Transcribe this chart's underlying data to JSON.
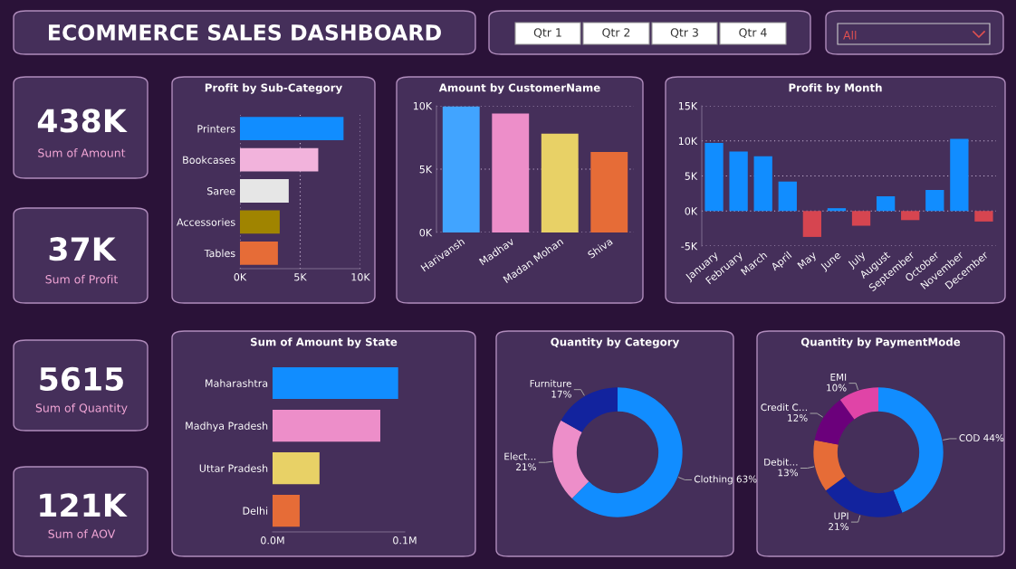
{
  "chart_data": [
    {
      "type": "other",
      "title": "ECOMMERCE SALES DASHBOARD",
      "annotations": [
        "Qtr 1",
        "Qtr 2",
        "Qtr 3",
        "Qtr 4",
        "All",
        "438K",
        "Sum of Amount",
        "37K",
        "Sum of Profit",
        "5615",
        "Sum of Quantity",
        "121K",
        "Sum of AOV"
      ]
    },
    {
      "type": "bar",
      "orientation": "horizontal",
      "title": "Profit by Sub-Category",
      "categories": [
        "Printers",
        "Bookcases",
        "Saree",
        "Accessories",
        "Tables"
      ],
      "values": [
        8600,
        6500,
        4050,
        3300,
        3150
      ],
      "colors": [
        "#118dff",
        "#f2b3dc",
        "#e6e6e6",
        "#a08400",
        "#e66c37"
      ],
      "xlim": [
        0,
        10000
      ],
      "xticks": [
        {
          "value": 0,
          "label": "0K"
        },
        {
          "value": 5000,
          "label": "5K"
        },
        {
          "value": 10000,
          "label": "10K"
        }
      ],
      "grid": "x"
    },
    {
      "type": "bar",
      "title": "Amount by CustomerName",
      "categories": [
        "Harivansh",
        "Madhav",
        "Madan Mohan",
        "Shiva"
      ],
      "values": [
        9950,
        9400,
        7800,
        6350
      ],
      "colors": [
        "#41a4ff",
        "#ed8ec9",
        "#e8d166",
        "#e66c37"
      ],
      "ylim": [
        0,
        10000
      ],
      "yticks": [
        {
          "value": 0,
          "label": "0K"
        },
        {
          "value": 5000,
          "label": "5K"
        },
        {
          "value": 10000,
          "label": "10K"
        }
      ],
      "grid": "y"
    },
    {
      "type": "bar",
      "title": "Profit by Month",
      "categories": [
        "January",
        "February",
        "March",
        "April",
        "May",
        "June",
        "July",
        "August",
        "September",
        "October",
        "November",
        "December"
      ],
      "values": [
        9700,
        8500,
        7800,
        4200,
        -3700,
        400,
        -2100,
        2100,
        -1300,
        3000,
        10300,
        -1500
      ],
      "colors": [
        "#118dff",
        "#118dff",
        "#118dff",
        "#118dff",
        "#d64550",
        "#118dff",
        "#d64550",
        "#118dff",
        "#d64550",
        "#118dff",
        "#118dff",
        "#d64550"
      ],
      "ylim": [
        -5000,
        15000
      ],
      "yticks": [
        {
          "value": -5000,
          "label": "-5K"
        },
        {
          "value": 0,
          "label": "0K"
        },
        {
          "value": 5000,
          "label": "5K"
        },
        {
          "value": 10000,
          "label": "10K"
        },
        {
          "value": 15000,
          "label": "15K"
        }
      ],
      "grid": "y"
    },
    {
      "type": "bar",
      "orientation": "horizontal",
      "title": "Sum of Amount by State",
      "categories": [
        "Maharashtra",
        "Madhya Pradesh",
        "Uttar Pradesh",
        "Delhi"
      ],
      "values": [
        0.095,
        0.0815,
        0.0355,
        0.0205
      ],
      "colors": [
        "#118dff",
        "#ed8ec9",
        "#e8d166",
        "#e66c37"
      ],
      "xlim": [
        0,
        0.1
      ],
      "xticks": [
        {
          "value": 0,
          "label": "0.0M"
        },
        {
          "value": 0.1,
          "label": "0.1M"
        }
      ]
    },
    {
      "type": "donut",
      "title": "Quantity by Category",
      "categories": [
        "Clothing",
        "Elect…",
        "Furniture"
      ],
      "values": [
        63,
        21,
        17
      ],
      "value_labels": [
        "63%",
        "21%",
        "17%"
      ],
      "colors": [
        "#118dff",
        "#ed8ec9",
        "#12239e"
      ]
    },
    {
      "type": "donut",
      "title": "Quantity by PaymentMode",
      "categories": [
        "COD",
        "UPI",
        "Debit…",
        "Credit C…",
        "EMI"
      ],
      "values": [
        44,
        21,
        13,
        12,
        10
      ],
      "value_labels": [
        "44%",
        "21%",
        "13%",
        "12%",
        "10%"
      ],
      "colors": [
        "#118dff",
        "#12239e",
        "#e66c37",
        "#6b007b",
        "#e044a7"
      ]
    }
  ]
}
